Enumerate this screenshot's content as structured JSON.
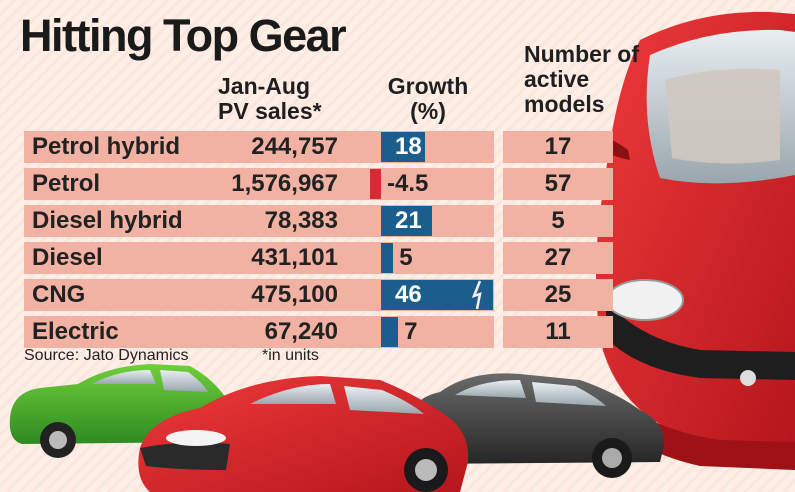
{
  "title": "Hitting Top Gear",
  "headers": {
    "sales": [
      "Jan-Aug",
      "PV sales*"
    ],
    "growth": [
      "Growth",
      "(%)"
    ],
    "models": [
      "Number of",
      "active",
      "models"
    ]
  },
  "source": "Source: Jato Dynamics",
  "unit_note": "*in units",
  "colors": {
    "positive_bar": "#1b5e8c",
    "negative_bar": "#d62a34",
    "row_band": "#f2b2a3",
    "accent_car": "#d8242b"
  },
  "chart_data": {
    "type": "table",
    "title": "Hitting Top Gear",
    "columns": [
      "",
      "Jan-Aug PV sales*",
      "Growth (%)",
      "Number of active models"
    ],
    "rows": [
      {
        "fuel": "Petrol hybrid",
        "sales": "244,757",
        "growth": 18,
        "growth_label": "18",
        "models": "17"
      },
      {
        "fuel": "Petrol",
        "sales": "1,576,967",
        "growth": -4.5,
        "growth_label": "-4.5",
        "models": "57"
      },
      {
        "fuel": "Diesel hybrid",
        "sales": "78,383",
        "growth": 21,
        "growth_label": "21",
        "models": "5"
      },
      {
        "fuel": "Diesel",
        "sales": "431,101",
        "growth": 5,
        "growth_label": "5",
        "models": "27"
      },
      {
        "fuel": "CNG",
        "sales": "475,100",
        "growth": 46,
        "growth_label": "46",
        "models": "25"
      },
      {
        "fuel": "Electric",
        "sales": "67,240",
        "growth": 7,
        "growth_label": "7",
        "models": "11"
      }
    ]
  }
}
